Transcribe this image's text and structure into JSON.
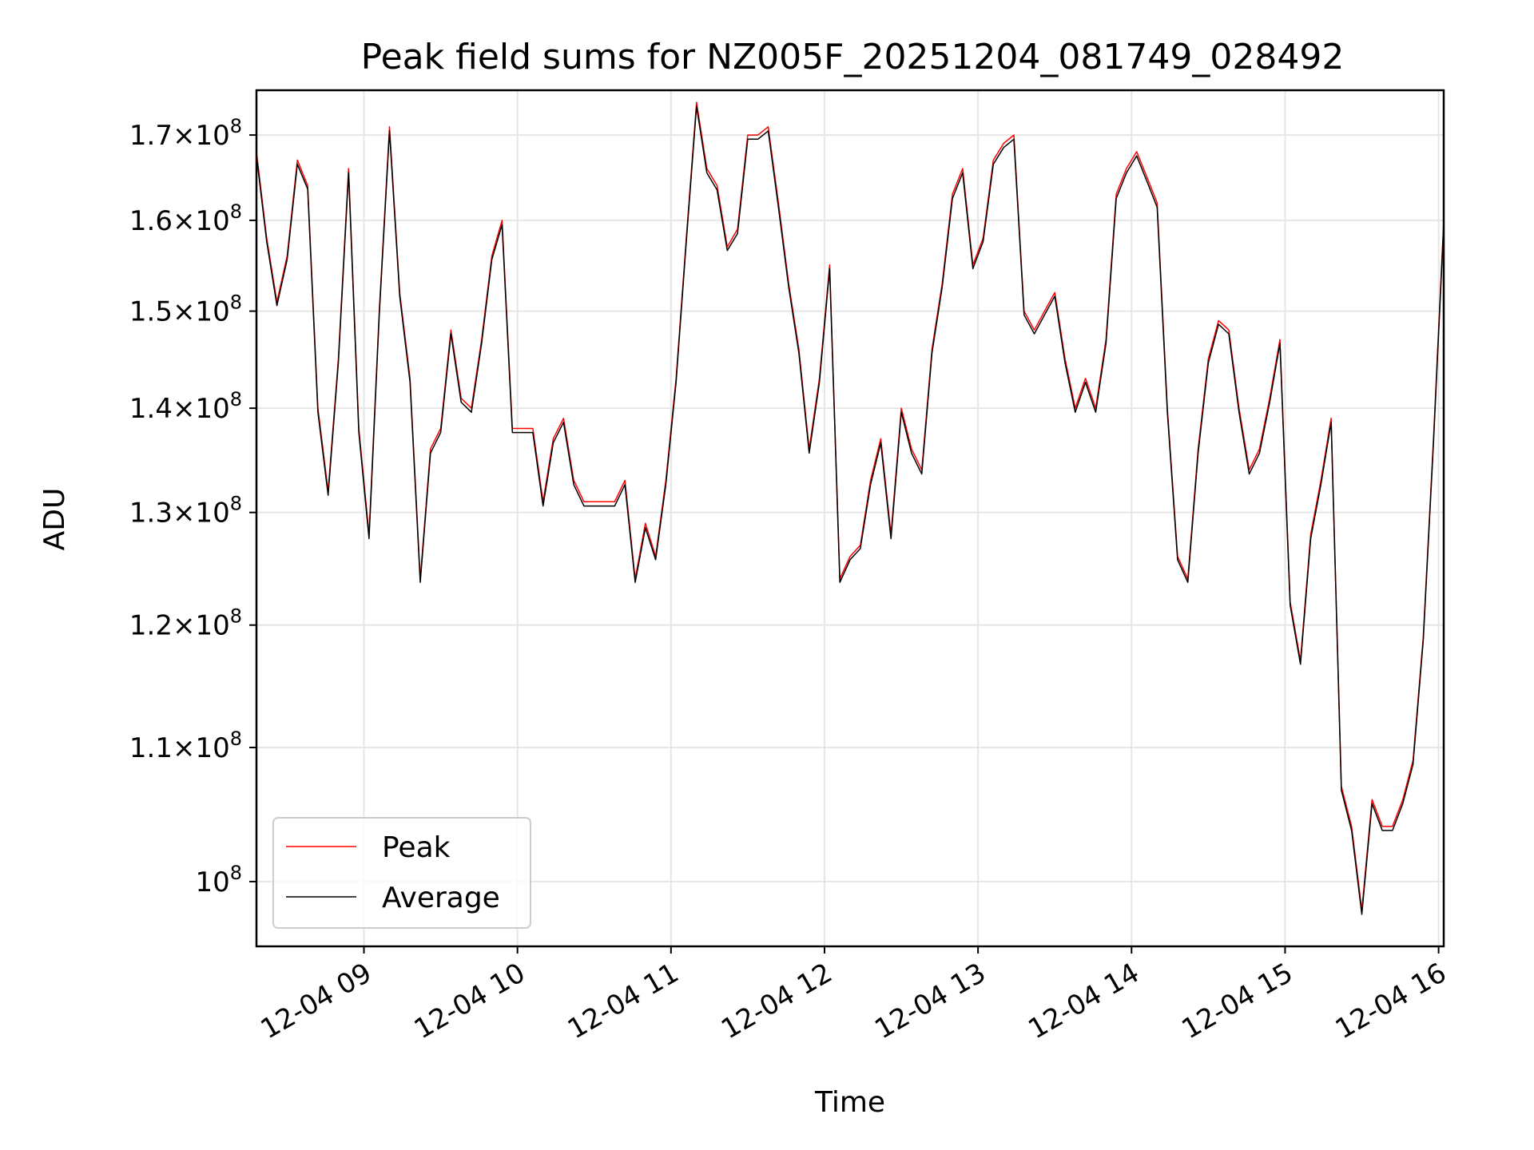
{
  "chart_data": {
    "type": "line",
    "title": "Peak field sums for NZ005F_20251204_081749_028492",
    "xlabel": "Time",
    "ylabel": "ADU",
    "y_scale": "log",
    "grid": true,
    "legend_position": "lower-left",
    "xlim": [
      "2025-12-04 08:18",
      "2025-12-04 16:02"
    ],
    "ylim": [
      95500000,
      175500000
    ],
    "x_ticks": [
      "2025-12-04 09:00",
      "2025-12-04 10:00",
      "2025-12-04 11:00",
      "2025-12-04 12:00",
      "2025-12-04 13:00",
      "2025-12-04 14:00",
      "2025-12-04 15:00",
      "2025-12-04 16:00"
    ],
    "x_tick_labels": [
      "12-04 09",
      "12-04 10",
      "12-04 11",
      "12-04 12",
      "12-04 13",
      "12-04 14",
      "12-04 15",
      "12-04 16"
    ],
    "y_ticks": [
      100000000,
      110000000,
      120000000,
      130000000,
      140000000,
      150000000,
      160000000,
      170000000
    ],
    "y_tick_labels": [
      {
        "mant": "",
        "exp": "8"
      },
      {
        "mant": "1.1×",
        "exp": "8"
      },
      {
        "mant": "1.2×",
        "exp": "8"
      },
      {
        "mant": "1.3×",
        "exp": "8"
      },
      {
        "mant": "1.4×",
        "exp": "8"
      },
      {
        "mant": "1.5×",
        "exp": "8"
      },
      {
        "mant": "1.6×",
        "exp": "8"
      },
      {
        "mant": "1.7×",
        "exp": "8"
      }
    ],
    "series": [
      {
        "name": "Peak",
        "color": "#ff0000",
        "x": [
          "2025-12-04 08:18",
          "2025-12-04 08:22",
          "2025-12-04 08:26",
          "2025-12-04 08:30",
          "2025-12-04 08:34",
          "2025-12-04 08:38",
          "2025-12-04 08:42",
          "2025-12-04 08:46",
          "2025-12-04 08:50",
          "2025-12-04 08:54",
          "2025-12-04 08:58",
          "2025-12-04 09:02",
          "2025-12-04 09:06",
          "2025-12-04 09:10",
          "2025-12-04 09:14",
          "2025-12-04 09:18",
          "2025-12-04 09:22",
          "2025-12-04 09:26",
          "2025-12-04 09:30",
          "2025-12-04 09:34",
          "2025-12-04 09:38",
          "2025-12-04 09:42",
          "2025-12-04 09:46",
          "2025-12-04 09:50",
          "2025-12-04 09:54",
          "2025-12-04 09:58",
          "2025-12-04 10:02",
          "2025-12-04 10:06",
          "2025-12-04 10:10",
          "2025-12-04 10:14",
          "2025-12-04 10:18",
          "2025-12-04 10:22",
          "2025-12-04 10:26",
          "2025-12-04 10:30",
          "2025-12-04 10:34",
          "2025-12-04 10:38",
          "2025-12-04 10:42",
          "2025-12-04 10:46",
          "2025-12-04 10:50",
          "2025-12-04 10:54",
          "2025-12-04 10:58",
          "2025-12-04 11:02",
          "2025-12-04 11:06",
          "2025-12-04 11:10",
          "2025-12-04 11:14",
          "2025-12-04 11:18",
          "2025-12-04 11:22",
          "2025-12-04 11:26",
          "2025-12-04 11:30",
          "2025-12-04 11:34",
          "2025-12-04 11:38",
          "2025-12-04 11:42",
          "2025-12-04 11:46",
          "2025-12-04 11:50",
          "2025-12-04 11:54",
          "2025-12-04 11:58",
          "2025-12-04 12:02",
          "2025-12-04 12:06",
          "2025-12-04 12:10",
          "2025-12-04 12:14",
          "2025-12-04 12:18",
          "2025-12-04 12:22",
          "2025-12-04 12:26",
          "2025-12-04 12:30",
          "2025-12-04 12:34",
          "2025-12-04 12:38",
          "2025-12-04 12:42",
          "2025-12-04 12:46",
          "2025-12-04 12:50",
          "2025-12-04 12:54",
          "2025-12-04 12:58",
          "2025-12-04 13:02",
          "2025-12-04 13:06",
          "2025-12-04 13:10",
          "2025-12-04 13:14",
          "2025-12-04 13:18",
          "2025-12-04 13:22",
          "2025-12-04 13:26",
          "2025-12-04 13:30",
          "2025-12-04 13:34",
          "2025-12-04 13:38",
          "2025-12-04 13:42",
          "2025-12-04 13:46",
          "2025-12-04 13:50",
          "2025-12-04 13:54",
          "2025-12-04 13:58",
          "2025-12-04 14:02",
          "2025-12-04 14:06",
          "2025-12-04 14:10",
          "2025-12-04 14:14",
          "2025-12-04 14:18",
          "2025-12-04 14:22",
          "2025-12-04 14:26",
          "2025-12-04 14:30",
          "2025-12-04 14:34",
          "2025-12-04 14:38",
          "2025-12-04 14:42",
          "2025-12-04 14:46",
          "2025-12-04 14:50",
          "2025-12-04 14:54",
          "2025-12-04 14:58",
          "2025-12-04 15:02",
          "2025-12-04 15:06",
          "2025-12-04 15:10",
          "2025-12-04 15:14",
          "2025-12-04 15:18",
          "2025-12-04 15:22",
          "2025-12-04 15:26",
          "2025-12-04 15:30",
          "2025-12-04 15:34",
          "2025-12-04 15:38",
          "2025-12-04 15:42",
          "2025-12-04 15:46",
          "2025-12-04 15:50",
          "2025-12-04 15:54",
          "2025-12-04 15:58",
          "2025-12-04 16:02"
        ],
        "values": [
          168000000,
          158000000,
          151000000,
          156000000,
          167000000,
          164000000,
          140000000,
          132000000,
          145000000,
          166000000,
          138000000,
          128000000,
          150000000,
          171000000,
          152000000,
          143000000,
          124000000,
          136000000,
          138000000,
          148000000,
          141000000,
          140000000,
          147000000,
          156000000,
          160000000,
          138000000,
          138000000,
          138000000,
          131000000,
          137000000,
          139000000,
          133000000,
          131000000,
          131000000,
          131000000,
          131000000,
          133000000,
          124000000,
          129000000,
          126000000,
          133000000,
          143000000,
          158000000,
          174000000,
          166000000,
          164000000,
          157000000,
          159000000,
          170000000,
          170000000,
          171000000,
          162000000,
          153000000,
          146000000,
          136000000,
          143000000,
          155000000,
          124000000,
          126000000,
          127000000,
          133000000,
          137000000,
          128000000,
          140000000,
          136000000,
          134000000,
          146000000,
          153000000,
          163000000,
          166000000,
          155000000,
          158000000,
          167000000,
          169000000,
          170000000,
          150000000,
          148000000,
          150000000,
          152000000,
          145000000,
          140000000,
          143000000,
          140000000,
          147000000,
          163000000,
          166000000,
          168000000,
          165000000,
          162000000,
          140000000,
          126000000,
          124000000,
          136000000,
          145000000,
          149000000,
          148000000,
          140000000,
          134000000,
          136000000,
          141000000,
          147000000,
          122000000,
          117000000,
          128000000,
          133000000,
          139000000,
          107000000,
          104000000,
          98000000,
          106000000,
          104000000,
          104000000,
          106000000,
          109000000,
          119000000,
          137000000,
          160000000
        ]
      },
      {
        "name": "Average",
        "color": "#000000",
        "x": [
          "2025-12-04 08:18",
          "2025-12-04 08:22",
          "2025-12-04 08:26",
          "2025-12-04 08:30",
          "2025-12-04 08:34",
          "2025-12-04 08:38",
          "2025-12-04 08:42",
          "2025-12-04 08:46",
          "2025-12-04 08:50",
          "2025-12-04 08:54",
          "2025-12-04 08:58",
          "2025-12-04 09:02",
          "2025-12-04 09:06",
          "2025-12-04 09:10",
          "2025-12-04 09:14",
          "2025-12-04 09:18",
          "2025-12-04 09:22",
          "2025-12-04 09:26",
          "2025-12-04 09:30",
          "2025-12-04 09:34",
          "2025-12-04 09:38",
          "2025-12-04 09:42",
          "2025-12-04 09:46",
          "2025-12-04 09:50",
          "2025-12-04 09:54",
          "2025-12-04 09:58",
          "2025-12-04 10:02",
          "2025-12-04 10:06",
          "2025-12-04 10:10",
          "2025-12-04 10:14",
          "2025-12-04 10:18",
          "2025-12-04 10:22",
          "2025-12-04 10:26",
          "2025-12-04 10:30",
          "2025-12-04 10:34",
          "2025-12-04 10:38",
          "2025-12-04 10:42",
          "2025-12-04 10:46",
          "2025-12-04 10:50",
          "2025-12-04 10:54",
          "2025-12-04 10:58",
          "2025-12-04 11:02",
          "2025-12-04 11:06",
          "2025-12-04 11:10",
          "2025-12-04 11:14",
          "2025-12-04 11:18",
          "2025-12-04 11:22",
          "2025-12-04 11:26",
          "2025-12-04 11:30",
          "2025-12-04 11:34",
          "2025-12-04 11:38",
          "2025-12-04 11:42",
          "2025-12-04 11:46",
          "2025-12-04 11:50",
          "2025-12-04 11:54",
          "2025-12-04 11:58",
          "2025-12-04 12:02",
          "2025-12-04 12:06",
          "2025-12-04 12:10",
          "2025-12-04 12:14",
          "2025-12-04 12:18",
          "2025-12-04 12:22",
          "2025-12-04 12:26",
          "2025-12-04 12:30",
          "2025-12-04 12:34",
          "2025-12-04 12:38",
          "2025-12-04 12:42",
          "2025-12-04 12:46",
          "2025-12-04 12:50",
          "2025-12-04 12:54",
          "2025-12-04 12:58",
          "2025-12-04 13:02",
          "2025-12-04 13:06",
          "2025-12-04 13:10",
          "2025-12-04 13:14",
          "2025-12-04 13:18",
          "2025-12-04 13:22",
          "2025-12-04 13:26",
          "2025-12-04 13:30",
          "2025-12-04 13:34",
          "2025-12-04 13:38",
          "2025-12-04 13:42",
          "2025-12-04 13:46",
          "2025-12-04 13:50",
          "2025-12-04 13:54",
          "2025-12-04 13:58",
          "2025-12-04 14:02",
          "2025-12-04 14:06",
          "2025-12-04 14:10",
          "2025-12-04 14:14",
          "2025-12-04 14:18",
          "2025-12-04 14:22",
          "2025-12-04 14:26",
          "2025-12-04 14:30",
          "2025-12-04 14:34",
          "2025-12-04 14:38",
          "2025-12-04 14:42",
          "2025-12-04 14:46",
          "2025-12-04 14:50",
          "2025-12-04 14:54",
          "2025-12-04 14:58",
          "2025-12-04 15:02",
          "2025-12-04 15:06",
          "2025-12-04 15:10",
          "2025-12-04 15:14",
          "2025-12-04 15:18",
          "2025-12-04 15:22",
          "2025-12-04 15:26",
          "2025-12-04 15:30",
          "2025-12-04 15:34",
          "2025-12-04 15:38",
          "2025-12-04 15:42",
          "2025-12-04 15:46",
          "2025-12-04 15:50",
          "2025-12-04 15:54",
          "2025-12-04 15:58",
          "2025-12-04 16:02"
        ],
        "values": [
          167500000,
          157600000,
          150600000,
          155600000,
          166500000,
          163600000,
          139600000,
          131600000,
          144600000,
          165500000,
          137600000,
          127600000,
          149600000,
          170500000,
          151600000,
          142600000,
          123700000,
          135600000,
          137600000,
          147600000,
          140600000,
          139600000,
          146600000,
          155600000,
          159500000,
          137600000,
          137600000,
          137600000,
          130600000,
          136600000,
          138600000,
          132600000,
          130600000,
          130600000,
          130600000,
          130600000,
          132600000,
          123700000,
          128600000,
          125700000,
          132600000,
          142600000,
          157600000,
          173500000,
          165500000,
          163500000,
          156600000,
          158500000,
          169500000,
          169500000,
          170500000,
          161500000,
          152600000,
          145600000,
          135600000,
          142600000,
          154600000,
          123700000,
          125700000,
          126700000,
          132600000,
          136600000,
          127600000,
          139600000,
          135600000,
          133600000,
          145600000,
          152600000,
          162500000,
          165500000,
          154600000,
          157600000,
          166500000,
          168500000,
          169500000,
          149600000,
          147600000,
          149600000,
          151600000,
          144600000,
          139600000,
          142600000,
          139600000,
          146600000,
          162500000,
          165500000,
          167500000,
          164500000,
          161500000,
          139600000,
          125700000,
          123700000,
          135600000,
          144600000,
          148600000,
          147600000,
          139600000,
          133600000,
          135600000,
          140600000,
          146600000,
          121700000,
          116700000,
          127600000,
          132600000,
          138600000,
          106700000,
          103700000,
          97700000,
          105700000,
          103700000,
          103700000,
          105700000,
          108700000,
          118700000,
          136600000,
          159500000
        ]
      }
    ]
  }
}
